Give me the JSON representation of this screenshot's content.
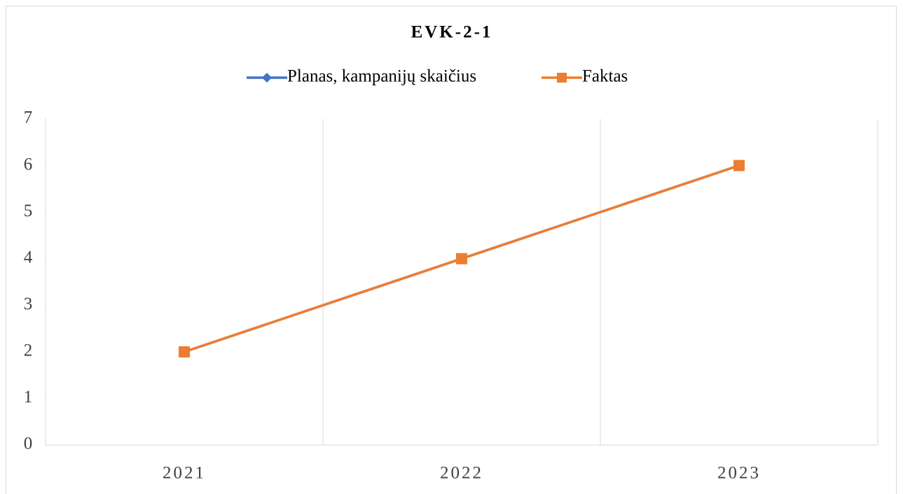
{
  "chart_data": {
    "type": "line",
    "title": "EVK-2-1",
    "categories": [
      "2021",
      "2022",
      "2023"
    ],
    "series": [
      {
        "name": "Planas, kampanijų skaičius",
        "color": "#4472c4",
        "marker": "diamond",
        "values": [
          2,
          4,
          6
        ]
      },
      {
        "name": "Faktas",
        "color": "#ed7d31",
        "marker": "square",
        "values": [
          2,
          4,
          6
        ]
      }
    ],
    "ylim": [
      0,
      7
    ],
    "yticks": [
      0,
      1,
      2,
      3,
      4,
      5,
      6,
      7
    ],
    "grid": "x",
    "legend": "top"
  }
}
